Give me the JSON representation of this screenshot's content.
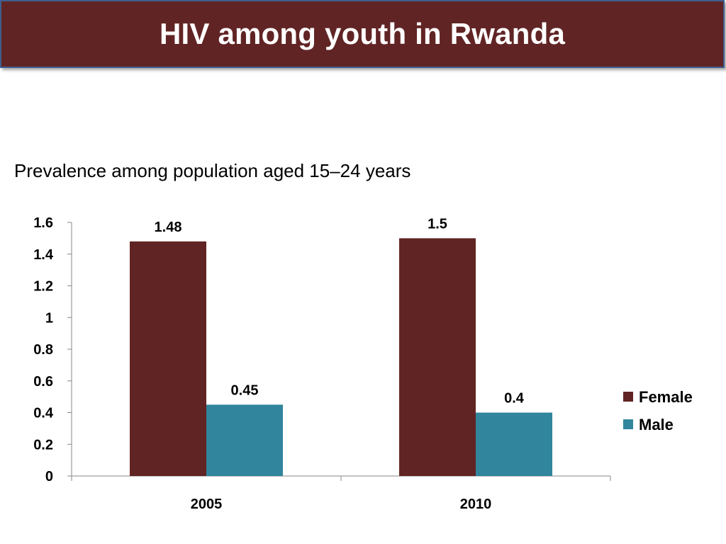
{
  "header": {
    "title": "HIV among youth in Rwanda"
  },
  "subtitle": "Prevalence among population aged 15–24 years",
  "chart_data": {
    "type": "bar",
    "categories": [
      "2005",
      "2010"
    ],
    "series": [
      {
        "name": "Female",
        "values": [
          1.48,
          1.5
        ],
        "labels": [
          "1.48",
          "1.5"
        ],
        "color": "#612424"
      },
      {
        "name": "Male",
        "values": [
          0.45,
          0.4
        ],
        "labels": [
          "0.45",
          "0.4"
        ],
        "color": "#31859c"
      }
    ],
    "ylim": [
      0,
      1.6
    ],
    "yticks": [
      0,
      0.2,
      0.4,
      0.6,
      0.8,
      1,
      1.2,
      1.4,
      1.6
    ],
    "ytick_labels": [
      "0",
      "0.2",
      "0.4",
      "0.6",
      "0.8",
      "1",
      "1.2",
      "1.4",
      "1.6"
    ],
    "xlabel": "",
    "ylabel": "",
    "grid": false,
    "legend_position": "right"
  },
  "colors": {
    "title_bar": "#612424",
    "female": "#612424",
    "male": "#31859c",
    "axis": "#878787"
  }
}
